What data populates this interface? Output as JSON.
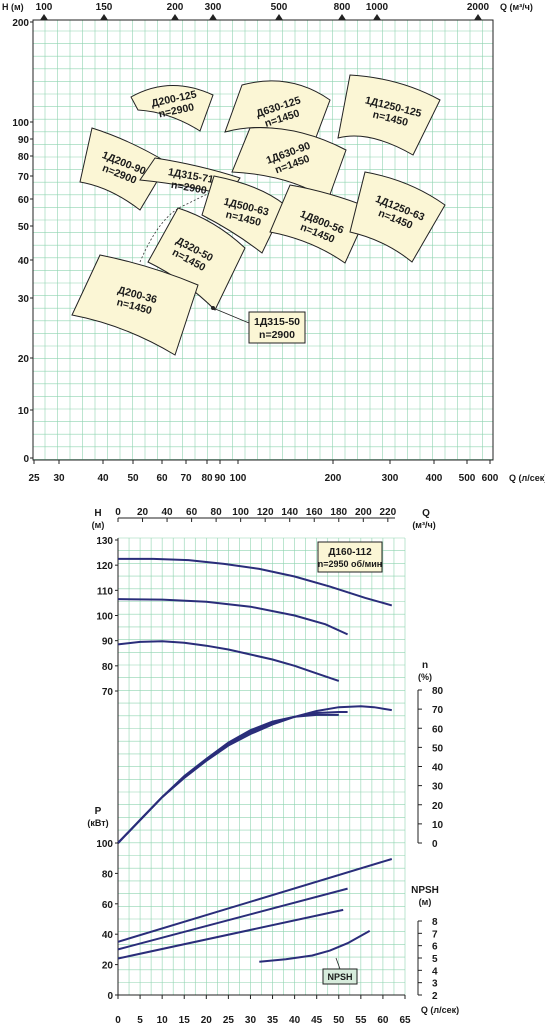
{
  "chart_data": [
    {
      "type": "map",
      "title": "",
      "x_bottom": {
        "label": "Q (л/сек)",
        "scale": "log",
        "ticks": [
          "25",
          "30",
          "40",
          "50",
          "60",
          "70",
          "80",
          "90",
          "100",
          "200",
          "300",
          "400",
          "500",
          "600"
        ]
      },
      "x_top": {
        "label": "Q (м³/ч)",
        "scale": "log",
        "ticks": [
          "100",
          "150",
          "200",
          "300",
          "500",
          "800",
          "1000",
          "2000"
        ]
      },
      "y": {
        "label": "H (м)",
        "scale": "mixed",
        "ticks": [
          "200",
          "100",
          "90",
          "80",
          "70",
          "60",
          "50",
          "40",
          "30",
          "20",
          "10",
          "0"
        ]
      },
      "grid": true,
      "series": [
        {
          "name": "Д200-125",
          "line2": "n=2900",
          "qx": [
            38,
            90
          ],
          "hy": [
            96,
            128
          ]
        },
        {
          "name": "Д630-125",
          "line2": "n=1450",
          "qx": [
            120,
            210
          ],
          "hy": [
            95,
            135
          ]
        },
        {
          "name": "1Д1250-125",
          "line2": "n=1450",
          "qx": [
            230,
            350
          ],
          "hy": [
            95,
            145
          ]
        },
        {
          "name": "1Д200-90",
          "line2": "n=2900",
          "qx": [
            30,
            75
          ],
          "hy": [
            62,
            100
          ]
        },
        {
          "name": "1Д315-71",
          "line2": "n=2900",
          "qx": [
            60,
            110
          ],
          "hy": [
            62,
            80
          ]
        },
        {
          "name": "1Д630-90",
          "line2": "n=1450",
          "qx": [
            120,
            210
          ],
          "hy": [
            62,
            100
          ]
        },
        {
          "name": "1Д500-63",
          "line2": "n=1450",
          "qx": [
            90,
            150
          ],
          "hy": [
            45,
            70
          ]
        },
        {
          "name": "1Д800-56",
          "line2": "n=1450",
          "qx": [
            130,
            260
          ],
          "hy": [
            38,
            62
          ]
        },
        {
          "name": "1Д1250-63",
          "line2": "n=1450",
          "qx": [
            230,
            420
          ],
          "hy": [
            40,
            70
          ]
        },
        {
          "name": "Д320-50",
          "line2": "n=1450",
          "qx": [
            60,
            110
          ],
          "hy": [
            30,
            60
          ]
        },
        {
          "name": "Д200-36",
          "line2": "n=1450",
          "qx": [
            30,
            80
          ],
          "hy": [
            23,
            45
          ]
        }
      ],
      "callout": {
        "name": "1Д315-50",
        "line2": "n=2900"
      }
    },
    {
      "type": "line",
      "title": "Д160-112",
      "subtitle": "n=2950 об/мин",
      "x_bottom": {
        "label": "Q (л/сек)",
        "ticks": [
          "0",
          "5",
          "10",
          "15",
          "20",
          "25",
          "30",
          "35",
          "40",
          "45",
          "50",
          "55",
          "60",
          "65"
        ],
        "range": [
          0,
          65
        ]
      },
      "x_top": {
        "label": "Q",
        "unit": "(м³/ч)",
        "ticks": [
          "0",
          "20",
          "40",
          "60",
          "80",
          "100",
          "120",
          "140",
          "160",
          "180",
          "200",
          "220"
        ]
      },
      "panels": [
        {
          "id": "H",
          "ylabel": "H",
          "yunit": "(м)",
          "ylim": [
            70,
            130
          ],
          "yticks": [
            "130",
            "120",
            "110",
            "100",
            "90",
            "80",
            "70"
          ],
          "series": [
            {
              "x": [
                0,
                8,
                16,
                24,
                32,
                40,
                48,
                56,
                62
              ],
              "y": [
                122.5,
                122.5,
                122,
                120.5,
                118.5,
                115.5,
                111.5,
                107,
                104
              ]
            },
            {
              "x": [
                0,
                10,
                20,
                30,
                40,
                47,
                52
              ],
              "y": [
                106.5,
                106.3,
                105.5,
                103.5,
                100,
                96.5,
                92.5
              ]
            },
            {
              "x": [
                0,
                5,
                10,
                15,
                20,
                25,
                30,
                35,
                40,
                45,
                50
              ],
              "y": [
                88.5,
                89.5,
                89.8,
                89.2,
                88,
                86.5,
                84.5,
                82.5,
                80,
                77,
                74
              ]
            }
          ]
        },
        {
          "id": "eta",
          "ylabel": "n",
          "yunit": "(%)",
          "ylim": [
            0,
            80
          ],
          "yticks": [
            "80",
            "70",
            "60",
            "50",
            "40",
            "30",
            "20",
            "10",
            "0"
          ],
          "series": [
            {
              "x": [
                0,
                5,
                10,
                15,
                20,
                25,
                30,
                35,
                40,
                45,
                50,
                55,
                58,
                62
              ],
              "y": [
                0,
                12,
                24,
                34,
                43,
                51,
                57,
                62,
                66,
                69,
                71,
                71.5,
                71,
                69.5
              ]
            },
            {
              "x": [
                0,
                5,
                10,
                15,
                20,
                25,
                30,
                35,
                40,
                45,
                50,
                52
              ],
              "y": [
                0,
                12,
                24,
                34.5,
                43.5,
                52,
                58,
                63,
                66,
                68,
                68.5,
                68.5
              ]
            },
            {
              "x": [
                0,
                5,
                10,
                15,
                20,
                25,
                30,
                35,
                40,
                45,
                50
              ],
              "y": [
                0,
                12,
                24,
                35,
                44,
                52.5,
                59,
                63.5,
                66,
                67,
                67
              ]
            }
          ]
        },
        {
          "id": "P",
          "ylabel": "P",
          "yunit": "(кВт)",
          "ylim": [
            0,
            100
          ],
          "yticks": [
            "100",
            "80",
            "60",
            "40",
            "20",
            "0"
          ],
          "series": [
            {
              "x": [
                0,
                62
              ],
              "y": [
                35,
                89.5
              ]
            },
            {
              "x": [
                0,
                52
              ],
              "y": [
                30,
                70
              ]
            },
            {
              "x": [
                0,
                51
              ],
              "y": [
                24,
                56
              ]
            }
          ]
        },
        {
          "id": "NPSH",
          "ylabel": "NPSH",
          "yunit": "(м)",
          "ylim": [
            2,
            8
          ],
          "yticks": [
            "8",
            "7",
            "6",
            "5",
            "4",
            "3",
            "2"
          ],
          "label": "NPSH",
          "series": [
            {
              "x": [
                32,
                38,
                44,
                48,
                52,
                57
              ],
              "y": [
                4.7,
                4.9,
                5.2,
                5.6,
                6.2,
                7.2
              ]
            }
          ]
        }
      ]
    }
  ]
}
